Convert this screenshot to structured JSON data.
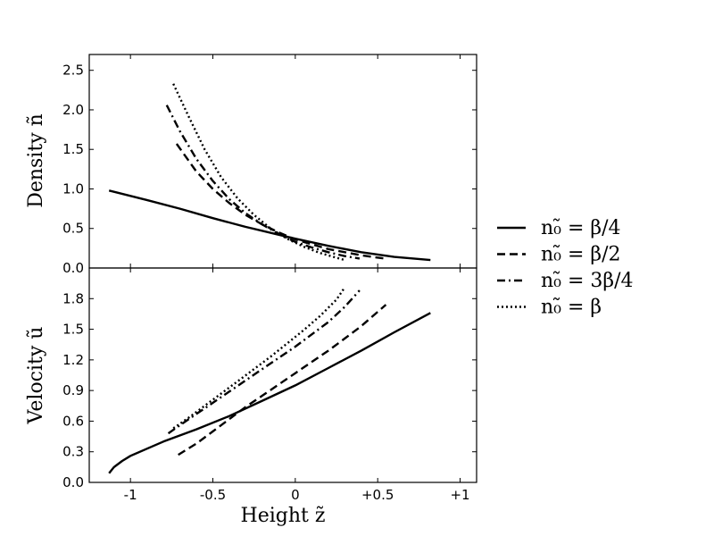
{
  "chart_data": {
    "type": "line",
    "xlabel": "Height  z̃",
    "x_ticks": [
      {
        "value": -1,
        "label": "-1"
      },
      {
        "value": -0.5,
        "label": "-0.5"
      },
      {
        "value": 0,
        "label": "0"
      },
      {
        "value": 0.5,
        "label": "+0.5"
      },
      {
        "value": 1,
        "label": "+1"
      }
    ],
    "xlim": [
      -1.25,
      1.1
    ],
    "legend_position": "right",
    "styles": [
      "solid",
      "dashed",
      "dashdot",
      "dotted"
    ],
    "legend": [
      {
        "label": "n₀̃  =  β/4",
        "style": "solid"
      },
      {
        "label": "n₀̃  =  β/2",
        "style": "dashed"
      },
      {
        "label": "n₀̃  =  3β/4",
        "style": "dashdot"
      },
      {
        "label": "n₀̃  =  β",
        "style": "dotted"
      }
    ],
    "panels": [
      {
        "id": "density",
        "ylabel": "Density  ñ",
        "ylim": [
          0,
          2.7
        ],
        "y_ticks": [
          "0.0",
          "0.5",
          "1.0",
          "1.5",
          "2.0",
          "2.5"
        ],
        "series": [
          {
            "style": "solid",
            "x": [
              -1.13,
              -0.9,
              -0.7,
              -0.5,
              -0.3,
              -0.1,
              0.0,
              0.2,
              0.4,
              0.6,
              0.82
            ],
            "y": [
              0.98,
              0.86,
              0.75,
              0.63,
              0.52,
              0.42,
              0.37,
              0.28,
              0.2,
              0.14,
              0.1
            ]
          },
          {
            "style": "dashed",
            "x": [
              -0.72,
              -0.6,
              -0.5,
              -0.4,
              -0.3,
              -0.2,
              -0.1,
              0.0,
              0.1,
              0.2,
              0.3,
              0.4,
              0.54
            ],
            "y": [
              1.57,
              1.22,
              1.0,
              0.82,
              0.67,
              0.55,
              0.45,
              0.36,
              0.3,
              0.24,
              0.2,
              0.16,
              0.12
            ]
          },
          {
            "style": "dashdot",
            "x": [
              -0.78,
              -0.7,
              -0.6,
              -0.5,
              -0.4,
              -0.3,
              -0.2,
              -0.1,
              0.0,
              0.1,
              0.2,
              0.3,
              0.39
            ],
            "y": [
              2.06,
              1.73,
              1.38,
              1.1,
              0.87,
              0.69,
              0.55,
              0.43,
              0.33,
              0.26,
              0.2,
              0.15,
              0.12
            ]
          },
          {
            "style": "dotted",
            "x": [
              -0.74,
              -0.65,
              -0.55,
              -0.45,
              -0.35,
              -0.25,
              -0.15,
              -0.05,
              0.05,
              0.15,
              0.25,
              0.3
            ],
            "y": [
              2.33,
              1.93,
              1.5,
              1.15,
              0.88,
              0.67,
              0.5,
              0.37,
              0.27,
              0.19,
              0.13,
              0.1
            ]
          }
        ]
      },
      {
        "id": "velocity",
        "ylabel": "Velocity  ũ",
        "ylim": [
          0,
          2.1
        ],
        "y_ticks": [
          "0.0",
          "0.3",
          "0.6",
          "0.9",
          "1.2",
          "1.5",
          "1.8"
        ],
        "series": [
          {
            "style": "solid",
            "x": [
              -1.13,
              -1.1,
              -1.05,
              -1.0,
              -0.9,
              -0.8,
              -0.6,
              -0.4,
              -0.2,
              0.0,
              0.2,
              0.4,
              0.6,
              0.82
            ],
            "y": [
              0.09,
              0.15,
              0.21,
              0.26,
              0.33,
              0.4,
              0.52,
              0.65,
              0.8,
              0.95,
              1.12,
              1.29,
              1.47,
              1.66
            ]
          },
          {
            "style": "dashed",
            "x": [
              -0.71,
              -0.6,
              -0.5,
              -0.4,
              -0.3,
              -0.2,
              -0.1,
              0.0,
              0.1,
              0.2,
              0.3,
              0.4,
              0.55
            ],
            "y": [
              0.27,
              0.38,
              0.5,
              0.62,
              0.74,
              0.85,
              0.96,
              1.07,
              1.18,
              1.29,
              1.41,
              1.53,
              1.74
            ]
          },
          {
            "style": "dashdot",
            "x": [
              -0.77,
              -0.7,
              -0.6,
              -0.5,
              -0.4,
              -0.3,
              -0.2,
              -0.1,
              0.0,
              0.1,
              0.2,
              0.3,
              0.39
            ],
            "y": [
              0.48,
              0.56,
              0.67,
              0.78,
              0.89,
              1.0,
              1.11,
              1.22,
              1.33,
              1.45,
              1.57,
              1.72,
              1.88
            ]
          },
          {
            "style": "dotted",
            "x": [
              -0.74,
              -0.65,
              -0.55,
              -0.45,
              -0.35,
              -0.25,
              -0.15,
              -0.05,
              0.05,
              0.15,
              0.25,
              0.3
            ],
            "y": [
              0.53,
              0.63,
              0.75,
              0.87,
              0.99,
              1.11,
              1.23,
              1.36,
              1.49,
              1.63,
              1.79,
              1.91
            ]
          }
        ]
      }
    ]
  }
}
